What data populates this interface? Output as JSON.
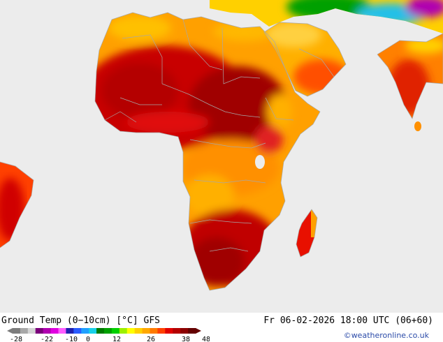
{
  "product": {
    "title": "Ground Temp (0−10cm) [°C] GFS",
    "valid_time": "Fr 06-02-2026 18:00 UTC (06+60)",
    "credit": "©weatheronline.co.uk"
  },
  "legend": {
    "tick_labels": [
      "-28",
      "-22",
      "-10",
      "0",
      "12",
      "26",
      "38",
      "48"
    ],
    "colors": [
      "#7c7c7c",
      "#a8a8a8",
      "#d4d4d4",
      "#7a007a",
      "#b000b0",
      "#e000e0",
      "#ff5cff",
      "#2020b0",
      "#2a5cff",
      "#1fa0ff",
      "#18d0e8",
      "#007a00",
      "#00a000",
      "#00d000",
      "#9cf000",
      "#ffff00",
      "#ffd000",
      "#ffa800",
      "#ff7a00",
      "#ff4000",
      "#e00000",
      "#b40000",
      "#8c0000",
      "#640000"
    ]
  },
  "map": {
    "ocean_color": "#ececec",
    "border_color": "#a8a8a8"
  }
}
